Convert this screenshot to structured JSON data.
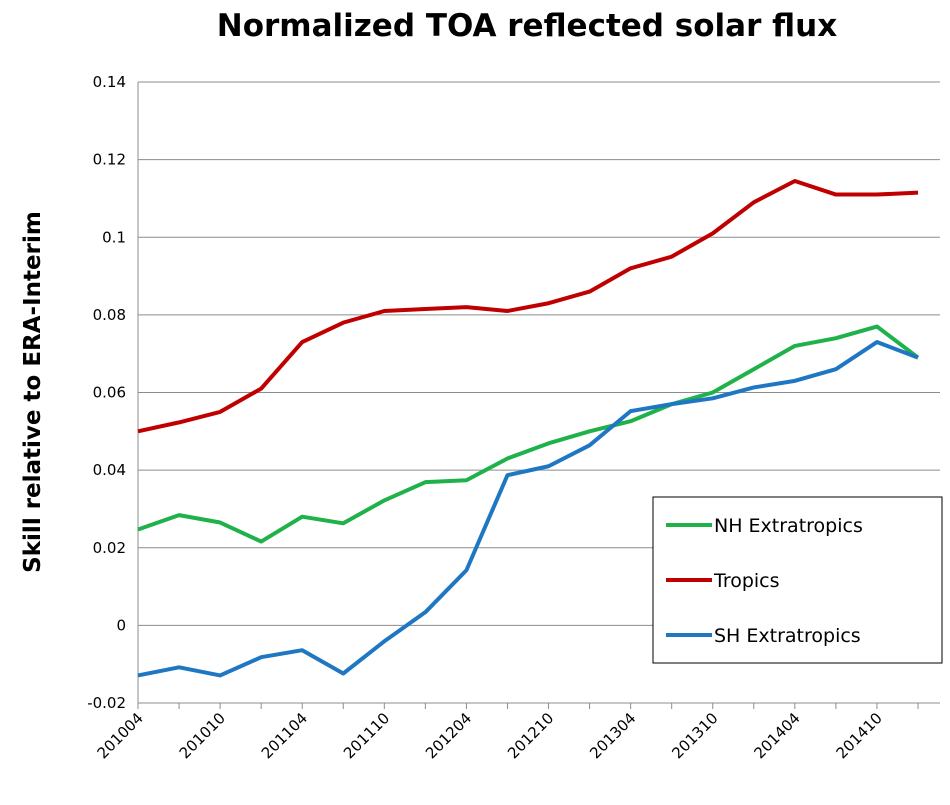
{
  "chart_data": {
    "type": "line",
    "title": "Normalized TOA reflected solar flux",
    "y_label": "Skill relative to ERA-Interim",
    "categories": [
      "201004",
      null,
      "201010",
      null,
      "201104",
      null,
      "201110",
      null,
      "201204",
      null,
      "201210",
      null,
      "201304",
      null,
      "201310",
      null,
      "201404",
      null,
      "201410",
      null
    ],
    "series": [
      {
        "name": "NH Extratropics",
        "color": "#1fb14a",
        "values": [
          0.0247,
          0.0284,
          0.0265,
          0.0216,
          0.028,
          0.0263,
          0.0322,
          0.0369,
          0.0374,
          0.043,
          0.0469,
          0.05,
          0.0526,
          0.057,
          0.06,
          0.066,
          0.072,
          0.074,
          0.077,
          0.069
        ]
      },
      {
        "name": "Tropics",
        "color": "#c00000",
        "values": [
          0.05,
          0.0523,
          0.055,
          0.061,
          0.073,
          0.078,
          0.081,
          0.0815,
          0.082,
          0.081,
          0.083,
          0.086,
          0.092,
          0.095,
          0.101,
          0.109,
          0.1145,
          0.111,
          0.111,
          0.1115
        ]
      },
      {
        "name": "SH Extratropics",
        "color": "#1f77c4",
        "values": [
          -0.0129,
          -0.0108,
          -0.0129,
          -0.0082,
          -0.0064,
          -0.0124,
          -0.0041,
          0.0034,
          0.0142,
          0.0387,
          0.041,
          0.0464,
          0.0552,
          0.057,
          0.0585,
          0.0613,
          0.063,
          0.066,
          0.073,
          0.069
        ]
      }
    ],
    "ylim": [
      -0.02,
      0.14
    ],
    "yticks": [
      -0.02,
      0,
      0.02,
      0.04,
      0.06,
      0.08,
      0.1,
      0.12,
      0.14
    ],
    "grid": true
  }
}
